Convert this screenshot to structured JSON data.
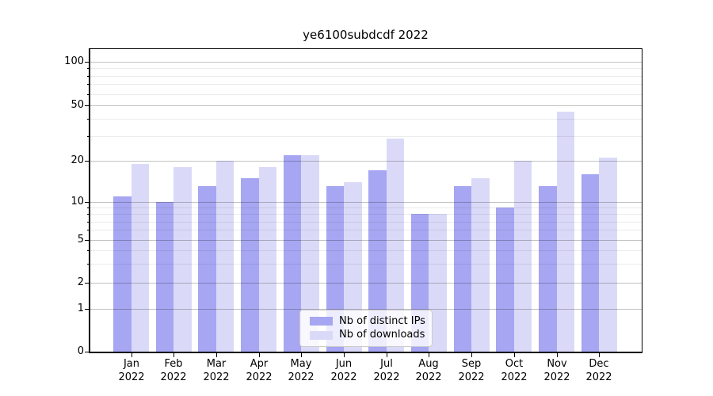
{
  "title": "ye6100subdcdf 2022",
  "legend": {
    "items": [
      {
        "label": "Nb of distinct IPs",
        "color": "#a6a6f2"
      },
      {
        "label": "Nb of downloads",
        "color": "#dadaf8"
      }
    ]
  },
  "chart_data": {
    "type": "bar",
    "title": "ye6100subdcdf 2022",
    "categories": [
      "Jan 2022",
      "Feb 2022",
      "Mar 2022",
      "Apr 2022",
      "May 2022",
      "Jun 2022",
      "Jul 2022",
      "Aug 2022",
      "Sep 2022",
      "Oct 2022",
      "Nov 2022",
      "Dec 2022"
    ],
    "series": [
      {
        "name": "Nb of distinct IPs",
        "color": "#a6a6f2",
        "values": [
          11,
          10,
          13,
          15,
          22,
          13,
          17,
          8,
          13,
          9,
          13,
          16
        ]
      },
      {
        "name": "Nb of downloads",
        "color": "#dadaf8",
        "values": [
          19,
          18,
          20,
          18,
          22,
          14,
          29,
          8,
          15,
          20,
          45,
          21
        ]
      }
    ],
    "xlabel": "",
    "ylabel": "",
    "yscale": "symlog",
    "ylim": [
      0,
      110
    ],
    "y_ticks": [
      0,
      1,
      2,
      5,
      10,
      20,
      50,
      100
    ],
    "y_minor_gridlines": [
      3,
      4,
      6,
      7,
      8,
      9,
      30,
      40,
      60,
      70,
      80,
      90
    ],
    "grid": true,
    "legend_position": "lower center"
  }
}
